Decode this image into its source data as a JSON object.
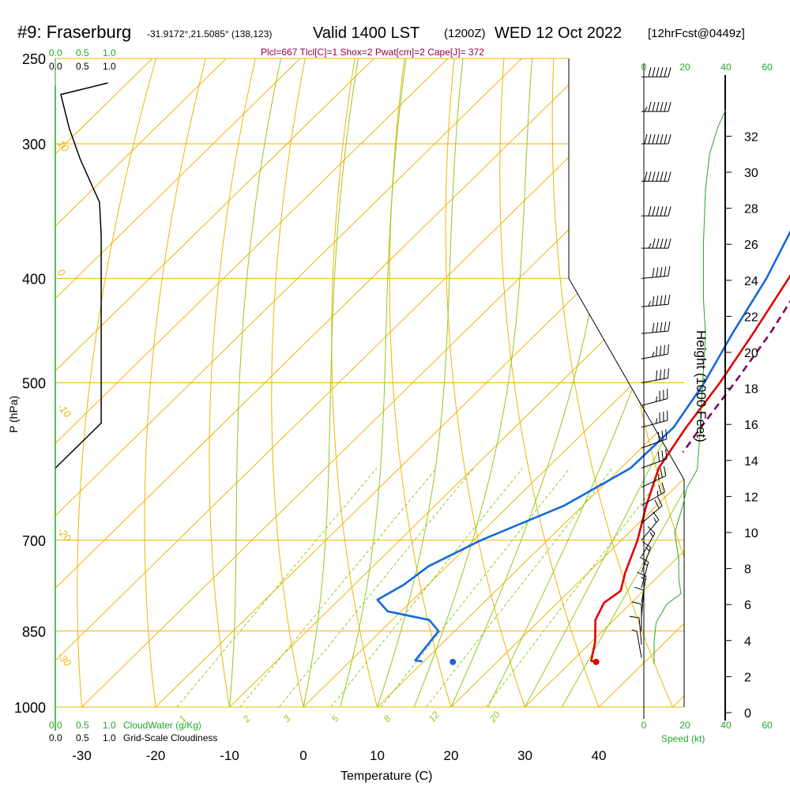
{
  "header": {
    "station": "#9: Fraserburg",
    "coords": "-31.9172°,21.5085° (138,123)",
    "valid": "Valid 1400 LST",
    "zulu": "(1200Z)",
    "date": "WED 12 Oct 2022",
    "forecast": "[12hrFcst@0449z]"
  },
  "indices": "Plcl=667 Tlcl[C]=1 Shox=2 Pwat[cm]=2 Cape[J]= 372",
  "axes": {
    "xlabel": "Temperature (C)",
    "ylabel": "P (hPa)",
    "height_label": "Height (1000 Feet)",
    "speed_label": "Speed (kt)",
    "cloudwater_label": "CloudWater (g/Kg)",
    "cloudiness_label": "Grid-Scale Cloudiness"
  },
  "colors": {
    "isobar": "#f0b400",
    "isotherm": "#f0b400",
    "dry_adiabat": "#f0b400",
    "moist_adiabat": "#8ecb20",
    "mixing_ratio": "#8ecb20",
    "temperature": "#e00000",
    "dewpoint": "#1468e0",
    "parcel": "#800060",
    "green_text": "#22aa22",
    "index_text": "#990044"
  },
  "chart_data": {
    "type": "line",
    "temp_ticks": [
      -30,
      -20,
      -10,
      0,
      10,
      20,
      30,
      40
    ],
    "pressure_levels": [
      250,
      300,
      400,
      500,
      700,
      850,
      1000
    ],
    "height_ticks": [
      0,
      2,
      4,
      6,
      8,
      10,
      12,
      14,
      16,
      18,
      20,
      22,
      24,
      26,
      28,
      30,
      32
    ],
    "isotherm_labels": [
      {
        "t": 0,
        "text": "0"
      },
      {
        "t": 10,
        "text": "10"
      },
      {
        "t": 20,
        "text": "20"
      },
      {
        "t": 30,
        "text": "30"
      }
    ],
    "left_isotherm_labels": [
      {
        "t": 10,
        "text": "10"
      },
      {
        "t": 0,
        "text": "0"
      },
      {
        "t": -10,
        "text": "-10"
      },
      {
        "t": -20,
        "text": "-20"
      },
      {
        "t": -30,
        "text": "-30"
      }
    ],
    "mixing_ratio_labels": [
      "1",
      "2",
      "3",
      "5",
      "8",
      "12",
      "20"
    ],
    "cloud_scale_top_green": [
      "0.0",
      "0.5",
      "1.0"
    ],
    "cloud_scale_top_black": [
      "0.0",
      "0.5",
      "1.0"
    ],
    "cloud_scale_bottom_green": [
      "0.0",
      "0.5",
      "1.0"
    ],
    "cloud_scale_bottom_black": [
      "0.0",
      "0.5",
      "1.0"
    ],
    "speed_ticks_top": [
      "0",
      "20",
      "40",
      "60"
    ],
    "speed_ticks_bottom": [
      "0",
      "20",
      "40",
      "60"
    ],
    "temperature": [
      {
        "p": 250,
        "t": -3.6
      },
      {
        "p": 300,
        "t": -0.5
      },
      {
        "p": 350,
        "t": 3.0
      },
      {
        "p": 400,
        "t": 6.5
      },
      {
        "p": 450,
        "t": 9.3
      },
      {
        "p": 500,
        "t": 11.6
      },
      {
        "p": 550,
        "t": 13.2
      },
      {
        "p": 600,
        "t": 15.1
      },
      {
        "p": 650,
        "t": 18.6
      },
      {
        "p": 700,
        "t": 22.2
      },
      {
        "p": 750,
        "t": 25.0
      },
      {
        "p": 780,
        "t": 26.9
      },
      {
        "p": 800,
        "t": 26.3
      },
      {
        "p": 830,
        "t": 27.5
      },
      {
        "p": 870,
        "t": 30.5
      },
      {
        "p": 906,
        "t": 32.6
      },
      {
        "p": 908,
        "t": 33.4
      }
    ],
    "dewpoint": [
      {
        "p": 250,
        "t": -7.5
      },
      {
        "p": 300,
        "t": -4.5
      },
      {
        "p": 350,
        "t": -0.8
      },
      {
        "p": 400,
        "t": 3.5
      },
      {
        "p": 450,
        "t": 6.5
      },
      {
        "p": 500,
        "t": 9.5
      },
      {
        "p": 550,
        "t": 11.5
      },
      {
        "p": 600,
        "t": 11.3
      },
      {
        "p": 650,
        "t": 7.5
      },
      {
        "p": 700,
        "t": 1.0
      },
      {
        "p": 740,
        "t": -2.5
      },
      {
        "p": 770,
        "t": -3.3
      },
      {
        "p": 795,
        "t": -4.8
      },
      {
        "p": 815,
        "t": -1.8
      },
      {
        "p": 830,
        "t": 5.0
      },
      {
        "p": 850,
        "t": 7.8
      },
      {
        "p": 880,
        "t": 8.3
      },
      {
        "p": 905,
        "t": 8.7
      },
      {
        "p": 907,
        "t": 9.8
      }
    ],
    "parcel": [
      {
        "p": 260,
        "t": -1.8
      },
      {
        "p": 300,
        "t": 1.2
      },
      {
        "p": 350,
        "t": 5.0
      },
      {
        "p": 400,
        "t": 8.7
      },
      {
        "p": 450,
        "t": 11.6
      },
      {
        "p": 500,
        "t": 13.6
      },
      {
        "p": 550,
        "t": 15.2
      },
      {
        "p": 580,
        "t": 16.2
      }
    ],
    "surface_temp": 33.4,
    "surface_dewpoint": 14.0,
    "cloudiness_profile": [
      {
        "p": 250,
        "v": 0.95
      },
      {
        "p": 270,
        "v": 0.1
      },
      {
        "p": 290,
        "v": 0.25
      },
      {
        "p": 310,
        "v": 0.45
      },
      {
        "p": 340,
        "v": 0.8
      },
      {
        "p": 365,
        "v": 0.83
      },
      {
        "p": 400,
        "v": 0.83
      },
      {
        "p": 500,
        "v": 0.83
      },
      {
        "p": 545,
        "v": 0.83
      },
      {
        "p": 600,
        "v": 0.0
      }
    ],
    "cloudwater_profile": [
      {
        "p": 250,
        "v": 0.0
      },
      {
        "p": 1000,
        "v": 0.0
      }
    ],
    "wind_speed_profile": [
      {
        "h": 2.7,
        "kt": 5
      },
      {
        "h": 4,
        "kt": 5
      },
      {
        "h": 5,
        "kt": 6
      },
      {
        "h": 6,
        "kt": 11
      },
      {
        "h": 6.6,
        "kt": 18
      },
      {
        "h": 7.5,
        "kt": 17
      },
      {
        "h": 8.5,
        "kt": 17
      },
      {
        "h": 10,
        "kt": 15
      },
      {
        "h": 11.5,
        "kt": 19
      },
      {
        "h": 12.5,
        "kt": 21
      },
      {
        "h": 13.5,
        "kt": 26
      },
      {
        "h": 15,
        "kt": 27
      },
      {
        "h": 17,
        "kt": 28
      },
      {
        "h": 19,
        "kt": 29
      },
      {
        "h": 21,
        "kt": 30
      },
      {
        "h": 23,
        "kt": 29
      },
      {
        "h": 24.5,
        "kt": 29
      },
      {
        "h": 26,
        "kt": 29
      },
      {
        "h": 27.5,
        "kt": 29.5
      },
      {
        "h": 29,
        "kt": 30
      },
      {
        "h": 31,
        "kt": 32
      },
      {
        "h": 32.5,
        "kt": 36
      },
      {
        "h": 33.5,
        "kt": 40
      }
    ],
    "wind_barbs": [
      {
        "p": 260,
        "dir": 270,
        "kt": 60
      },
      {
        "p": 280,
        "dir": 270,
        "kt": 65
      },
      {
        "p": 300,
        "dir": 270,
        "kt": 70
      },
      {
        "p": 325,
        "dir": 270,
        "kt": 70
      },
      {
        "p": 350,
        "dir": 270,
        "kt": 60
      },
      {
        "p": 375,
        "dir": 270,
        "kt": 55
      },
      {
        "p": 400,
        "dir": 275,
        "kt": 50
      },
      {
        "p": 425,
        "dir": 275,
        "kt": 55
      },
      {
        "p": 450,
        "dir": 275,
        "kt": 50
      },
      {
        "p": 475,
        "dir": 280,
        "kt": 45
      },
      {
        "p": 500,
        "dir": 280,
        "kt": 40
      },
      {
        "p": 525,
        "dir": 285,
        "kt": 35
      },
      {
        "p": 550,
        "dir": 285,
        "kt": 35
      },
      {
        "p": 575,
        "dir": 290,
        "kt": 30
      },
      {
        "p": 600,
        "dir": 290,
        "kt": 30
      },
      {
        "p": 625,
        "dir": 295,
        "kt": 25
      },
      {
        "p": 650,
        "dir": 300,
        "kt": 25
      },
      {
        "p": 675,
        "dir": 310,
        "kt": 20
      },
      {
        "p": 700,
        "dir": 320,
        "kt": 15
      },
      {
        "p": 725,
        "dir": 330,
        "kt": 15
      },
      {
        "p": 750,
        "dir": 340,
        "kt": 15
      },
      {
        "p": 775,
        "dir": 345,
        "kt": 15
      },
      {
        "p": 800,
        "dir": 350,
        "kt": 15
      },
      {
        "p": 825,
        "dir": 355,
        "kt": 10
      },
      {
        "p": 850,
        "dir": 360,
        "kt": 10
      },
      {
        "p": 875,
        "dir": 5,
        "kt": 10
      },
      {
        "p": 900,
        "dir": 10,
        "kt": 5
      }
    ]
  }
}
